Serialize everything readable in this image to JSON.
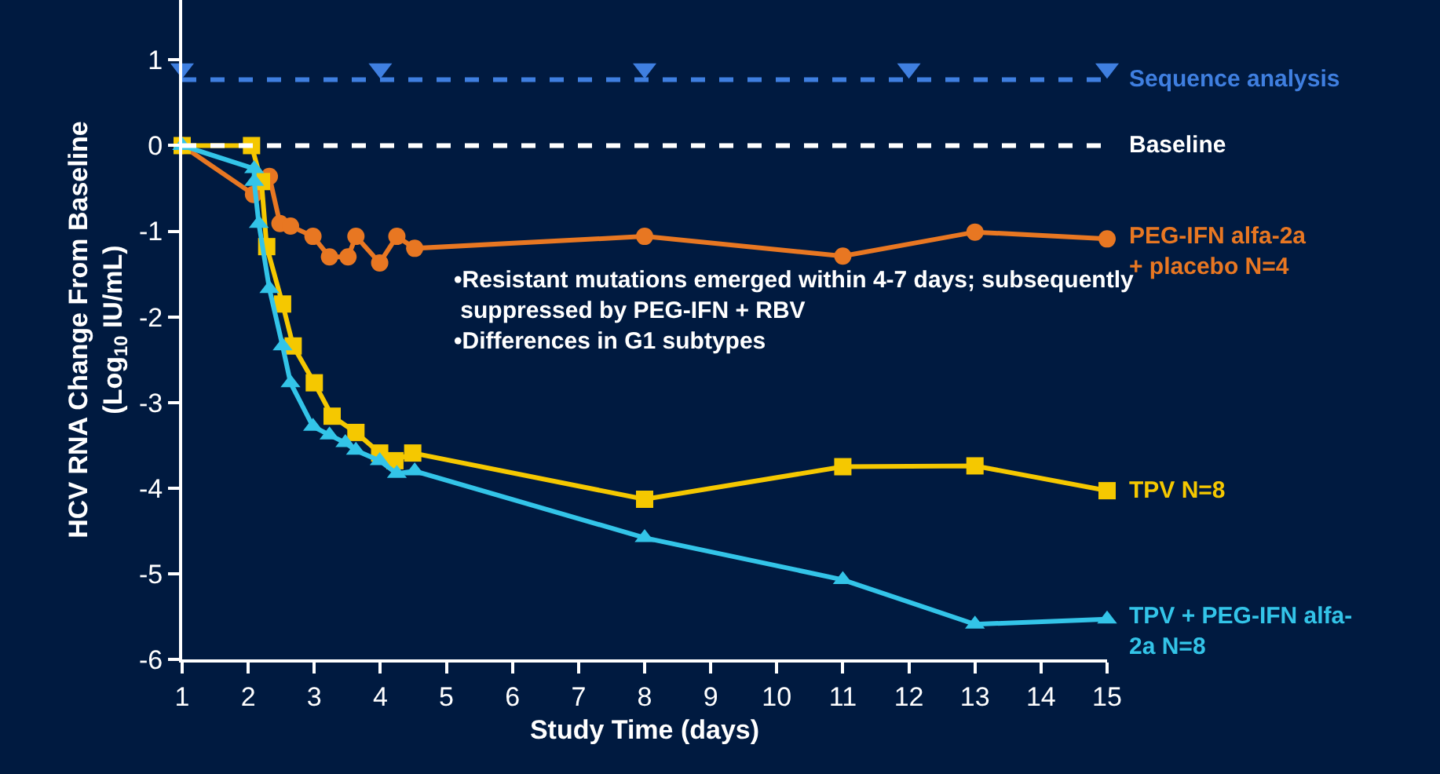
{
  "chart_data": {
    "type": "line",
    "xlabel": "Study Time (days)",
    "ylabel": "HCV RNA Change From Baseline\n(Log$_{10}$ IU/mL)",
    "xlim": [
      1,
      15
    ],
    "xticks": [
      1,
      2,
      3,
      4,
      5,
      6,
      7,
      8,
      9,
      10,
      11,
      12,
      13,
      14,
      15
    ],
    "ylim": [
      -6,
      1.7
    ],
    "yticks": [
      1,
      0,
      -1,
      -2,
      -3,
      -4,
      -5,
      -6
    ],
    "grid": false,
    "legend": false,
    "line_style": "solid",
    "series": [
      {
        "name": "PEG-IFN alfa-2a\n+ placebo N=4",
        "color": "#e87722",
        "marker": "circle",
        "x": [
          1,
          2.08,
          2.32,
          2.48,
          2.64,
          2.98,
          3.23,
          3.51,
          3.63,
          3.99,
          4.25,
          4.52,
          8,
          11,
          13,
          15
        ],
        "values": [
          0,
          -0.57,
          -0.36,
          -0.91,
          -0.94,
          -1.06,
          -1.3,
          -1.3,
          -1.06,
          -1.37,
          -1.06,
          -1.2,
          -1.06,
          -1.29,
          -1.01,
          -1.09
        ]
      },
      {
        "name": "TPV N=8",
        "color": "#f5c800",
        "marker": "square",
        "x": [
          1,
          2.05,
          2.2,
          2.28,
          2.52,
          2.68,
          3,
          3.27,
          3.63,
          3.99,
          4.22,
          4.49,
          8,
          11,
          13,
          15
        ],
        "values": [
          0,
          0,
          -0.42,
          -1.18,
          -1.85,
          -2.34,
          -2.77,
          -3.16,
          -3.35,
          -3.59,
          -3.68,
          -3.59,
          -4.13,
          -3.75,
          -3.74,
          -4.03
        ]
      },
      {
        "type": "scatter",
        "color": "#3f7fe0",
        "marker": "triangle",
        "x": [
          1,
          4,
          8,
          12,
          15
        ],
        "values": [
          0.9,
          0.9,
          0.9,
          0.9,
          0.9
        ]
      },
      {
        "name": "TPV + PEG-IFN alfa-\n2a N=8",
        "color": "#33c4e8",
        "marker": "triangle",
        "x": [
          1,
          2.09,
          2.09,
          2.16,
          2.32,
          2.52,
          2.64,
          2.98,
          3.23,
          3.47,
          3.63,
          3.99,
          4.25,
          4.52,
          8,
          11,
          13,
          15
        ],
        "values": [
          0,
          -0.27,
          -0.42,
          -0.91,
          -1.67,
          -2.34,
          -2.77,
          -3.28,
          -3.38,
          -3.47,
          -3.56,
          -3.68,
          -3.83,
          -3.8,
          -4.58,
          -5.07,
          -5.59,
          -5.53
        ]
      }
    ],
    "ref_lines": [
      {
        "axis": "y",
        "value": 0.77,
        "label": "Sequence analysis",
        "color": "#3f7fe0",
        "line_style": "dashed"
      },
      {
        "axis": "y",
        "value": 0,
        "label": "Baseline",
        "color": "#ffffff",
        "line_style": "dashed"
      }
    ],
    "annotations": [
      "•Resistant mutations emerged within 4-7 days; subsequently\n suppressed by PEG-IFN + RBV\n•Differences in G1 subtypes"
    ]
  }
}
